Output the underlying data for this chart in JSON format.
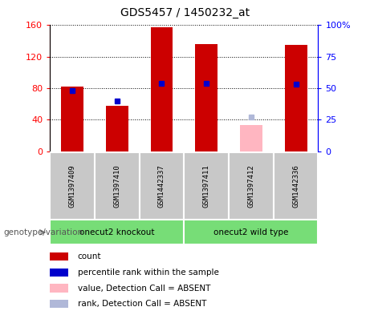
{
  "title": "GDS5457 / 1450232_at",
  "samples": [
    "GSM1397409",
    "GSM1397410",
    "GSM1442337",
    "GSM1397411",
    "GSM1397412",
    "GSM1442336"
  ],
  "count_values": [
    82,
    58,
    157,
    136,
    null,
    135
  ],
  "count_absent": [
    null,
    null,
    null,
    null,
    33,
    null
  ],
  "percentile_values": [
    48,
    40,
    54,
    54,
    null,
    53
  ],
  "percentile_absent": [
    null,
    null,
    null,
    null,
    27,
    null
  ],
  "ylim_left": [
    0,
    160
  ],
  "ylim_right": [
    0,
    100
  ],
  "yticks_left": [
    0,
    40,
    80,
    120,
    160
  ],
  "yticks_right": [
    0,
    25,
    50,
    75,
    100
  ],
  "ytick_labels_left": [
    "0",
    "40",
    "80",
    "120",
    "160"
  ],
  "ytick_labels_right": [
    "0",
    "25",
    "50",
    "75",
    "100%"
  ],
  "groups": [
    {
      "label": "onecut2 knockout",
      "color": "#77dd77"
    },
    {
      "label": "onecut2 wild type",
      "color": "#77dd77"
    }
  ],
  "group_label": "genotype/variation",
  "bar_width": 0.5,
  "bar_color_present": "#cc0000",
  "bar_color_absent": "#ffb6c1",
  "dot_color_present": "#0000cc",
  "dot_color_absent": "#b0b8d8",
  "bg_color": "#c8c8c8",
  "legend_items": [
    {
      "color": "#cc0000",
      "label": "count"
    },
    {
      "color": "#0000cc",
      "label": "percentile rank within the sample"
    },
    {
      "color": "#ffb6c1",
      "label": "value, Detection Call = ABSENT"
    },
    {
      "color": "#b0b8d8",
      "label": "rank, Detection Call = ABSENT"
    }
  ]
}
